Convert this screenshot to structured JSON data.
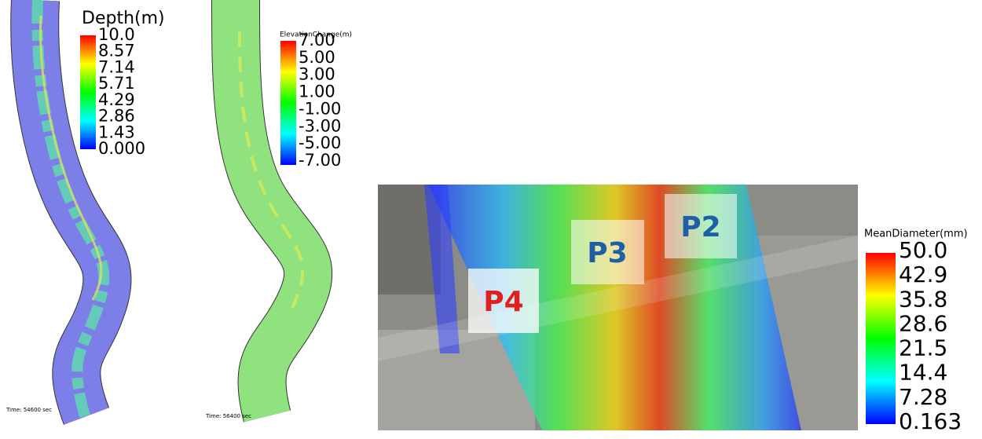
{
  "panels": [
    {
      "legend_title": "Depth(m)",
      "legend_labels": [
        "10.0",
        "8.57",
        "7.14",
        "5.71",
        "4.29",
        "2.86",
        "1.43",
        "0.000"
      ],
      "time": "Time: 54600 sec"
    },
    {
      "legend_title": "ElevationChange(m)",
      "legend_labels": [
        "7.00",
        "5.00",
        "3.00",
        "1.00",
        "-1.00",
        "-3.00",
        "-5.00",
        "-7.00"
      ],
      "time": "Time: 56400 sec"
    },
    {
      "legend_title": "MeanDiameter(mm)",
      "legend_labels": [
        "50.0",
        "42.9",
        "35.8",
        "28.6",
        "21.5",
        "14.4",
        "7.28",
        "0.163"
      ],
      "points": [
        "P4",
        "P3",
        "P2"
      ]
    }
  ]
}
